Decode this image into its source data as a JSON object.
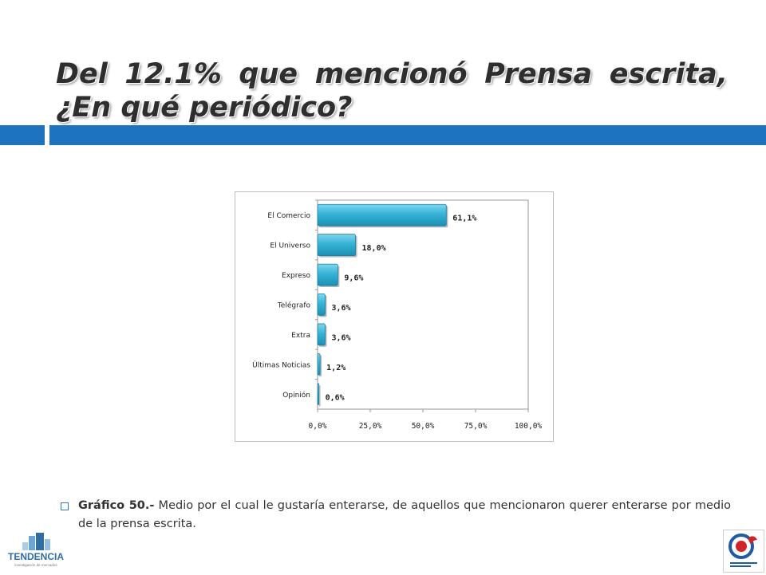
{
  "slide": {
    "title": "Del 12.1% que mencionó Prensa escrita, ¿En qué periódico?",
    "caption_bold": "Gráfico 50.-",
    "caption_text": " Medio por el cual le gustaría enterarse, de aquellos que mencionaron querer enterarse por medio de la prensa escrita.",
    "logo_left_text": "TENDENCIA",
    "logo_left_subtext": "investigación de mercados",
    "accent_color": "#1e73be"
  },
  "chart_data": {
    "type": "bar",
    "orientation": "horizontal",
    "categories": [
      "El Comercio",
      "El Universo",
      "Expreso",
      "Telégrafo",
      "Extra",
      "Últimas Noticias",
      "Opinión"
    ],
    "values": [
      61.1,
      18.0,
      9.6,
      3.6,
      3.6,
      1.2,
      0.6
    ],
    "data_labels": [
      "61,1%",
      "18,0%",
      "9,6%",
      "3,6%",
      "3,6%",
      "1,2%",
      "0,6%"
    ],
    "x_ticks": [
      0,
      25,
      50,
      75,
      100
    ],
    "x_tick_labels": [
      "0,0%",
      "25,0%",
      "50,0%",
      "75,0%",
      "100,0%"
    ],
    "xlim": [
      0,
      100
    ],
    "bar_color": "#35b3d6",
    "grid": false,
    "legend": false
  }
}
